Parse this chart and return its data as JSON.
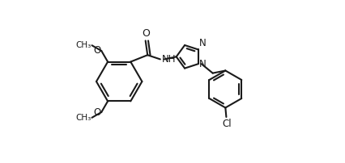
{
  "background_color": "#ffffff",
  "line_color": "#1a1a1a",
  "line_width": 1.5,
  "figsize": [
    4.26,
    2.02
  ],
  "dpi": 100,
  "xlim": [
    0.0,
    1.0
  ],
  "ylim": [
    0.0,
    1.0
  ]
}
